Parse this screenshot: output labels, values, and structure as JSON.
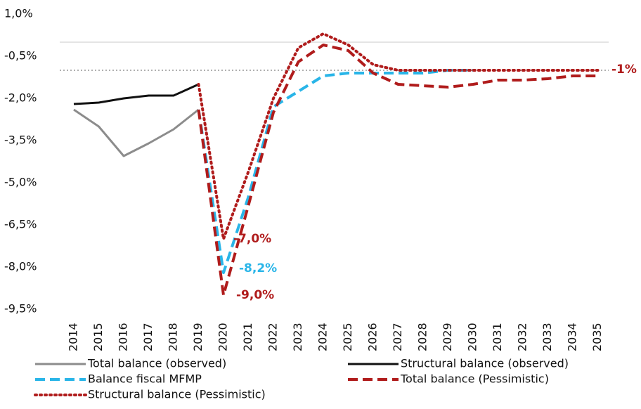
{
  "chart_data": {
    "type": "line",
    "categories": [
      "2014",
      "2015",
      "2016",
      "2017",
      "2018",
      "2019",
      "2020",
      "2021",
      "2022",
      "2023",
      "2024",
      "2025",
      "2026",
      "2027",
      "2028",
      "2029",
      "2030",
      "2031",
      "2032",
      "2033",
      "2034",
      "2035"
    ],
    "ylim": [
      -9.5,
      1.0
    ],
    "yticks": [
      {
        "value": 1.0,
        "label": "1,0%"
      },
      {
        "value": -0.5,
        "label": "-0,5%"
      },
      {
        "value": -2.0,
        "label": "-2,0%"
      },
      {
        "value": -3.5,
        "label": "-3,5%"
      },
      {
        "value": -5.0,
        "label": "-5,0%"
      },
      {
        "value": -6.5,
        "label": "-6,5%"
      },
      {
        "value": -8.0,
        "label": "-8,0%"
      },
      {
        "value": -9.5,
        "label": "-9,5%"
      }
    ],
    "reference_lines": [
      {
        "value": 0,
        "style": "solid",
        "color": "#c8c8c8"
      },
      {
        "value": -1,
        "style": "dotted",
        "color": "#b0b0b0"
      }
    ],
    "series": [
      {
        "name": "Total balance (observed)",
        "color": "#8c8c8c",
        "style": "solid",
        "values": [
          -2.4,
          -3.0,
          -4.05,
          -3.6,
          -3.1,
          -2.4,
          null,
          null,
          null,
          null,
          null,
          null,
          null,
          null,
          null,
          null,
          null,
          null,
          null,
          null,
          null,
          null
        ]
      },
      {
        "name": "Structural balance (observed)",
        "color": "#111111",
        "style": "solid",
        "values": [
          -2.2,
          -2.15,
          -2.0,
          -1.9,
          -1.9,
          -1.5,
          null,
          null,
          null,
          null,
          null,
          null,
          null,
          null,
          null,
          null,
          null,
          null,
          null,
          null,
          null,
          null
        ]
      },
      {
        "name": "Balance fiscal MFMP",
        "color": "#29b5e8",
        "style": "dashed",
        "values": [
          null,
          null,
          null,
          null,
          null,
          -2.4,
          -8.2,
          -5.5,
          -2.3,
          -1.75,
          -1.2,
          -1.1,
          -1.1,
          -1.1,
          -1.1,
          -1.0,
          -1.0,
          null,
          null,
          null,
          null,
          null
        ]
      },
      {
        "name": "Total balance (Pessimistic)",
        "color": "#b01c1c",
        "style": "dashed",
        "values": [
          null,
          null,
          null,
          null,
          null,
          -2.4,
          -9.0,
          -5.8,
          -2.5,
          -0.7,
          -0.1,
          -0.3,
          -1.1,
          -1.5,
          -1.55,
          -1.6,
          -1.5,
          -1.35,
          -1.35,
          -1.3,
          -1.2,
          -1.2
        ]
      },
      {
        "name": "Structural balance (Pessimistic)",
        "color": "#b01c1c",
        "style": "dotted",
        "values": [
          null,
          null,
          null,
          null,
          null,
          -1.5,
          -7.0,
          -4.6,
          -2.0,
          -0.2,
          0.3,
          -0.1,
          -0.8,
          -1.0,
          -1.0,
          -1.0,
          -1.0,
          -1.0,
          -1.0,
          -1.0,
          -1.0,
          -1.0
        ]
      }
    ],
    "annotations": [
      {
        "text": "-7,0%",
        "color": "#b01c1c"
      },
      {
        "text": "-8,2%",
        "color": "#29b5e8"
      },
      {
        "text": "-9,0%",
        "color": "#b01c1c"
      },
      {
        "text": "-1%",
        "color": "#b01c1c"
      }
    ]
  }
}
